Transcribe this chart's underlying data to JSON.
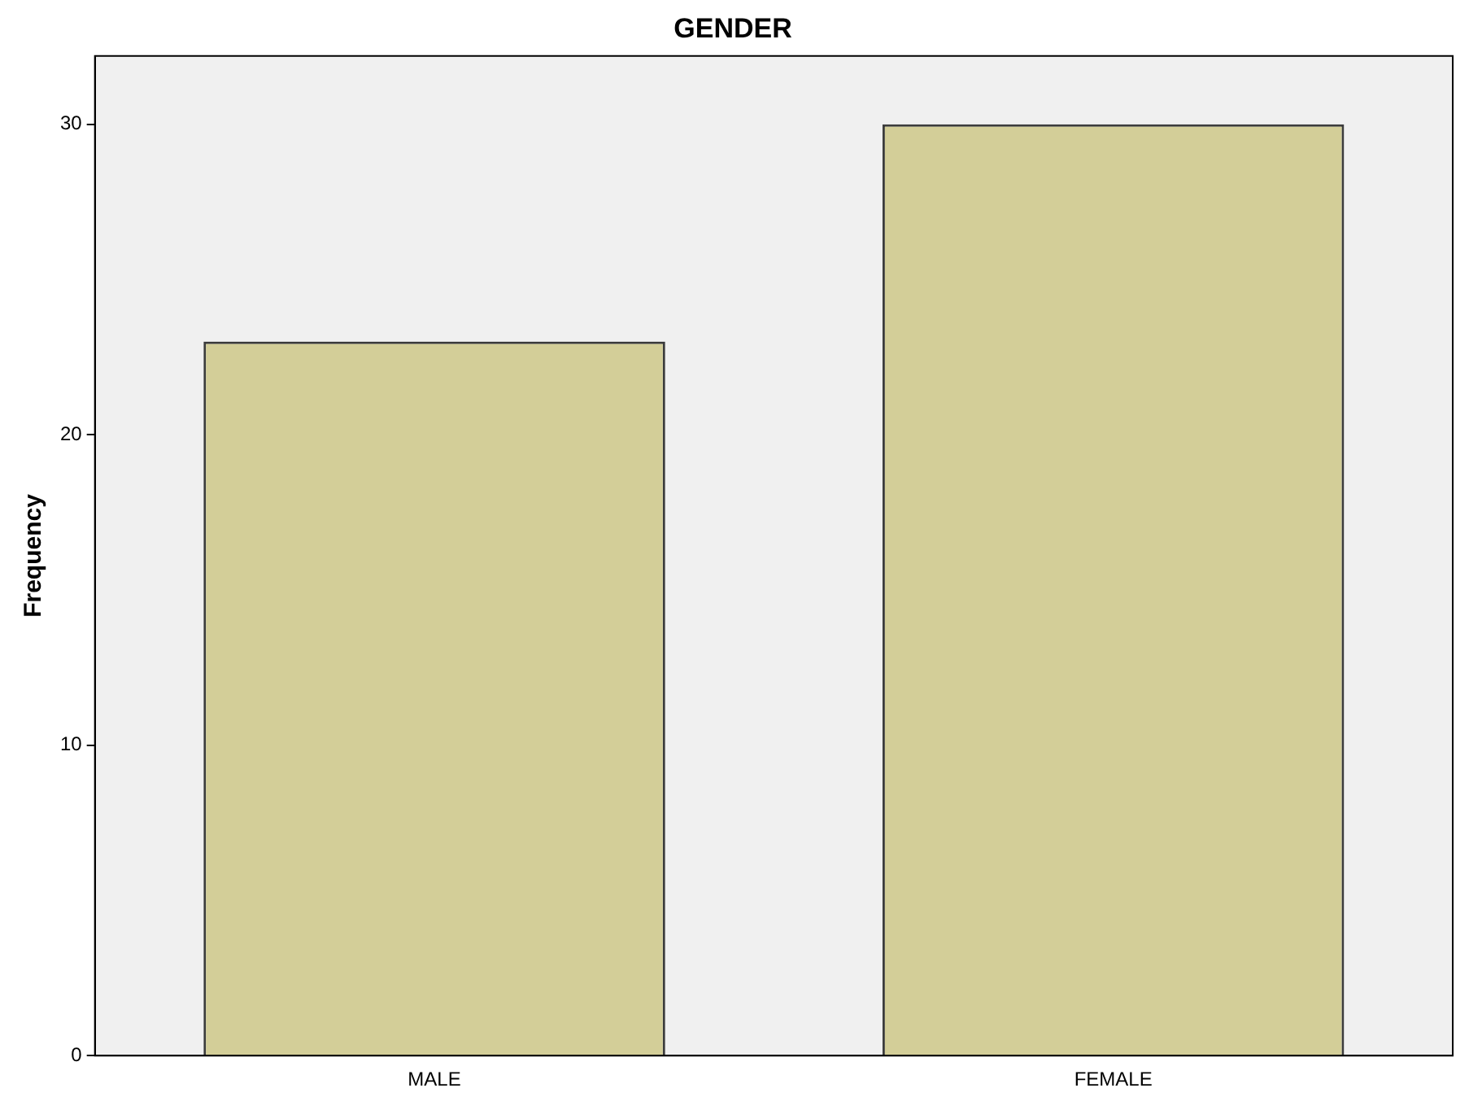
{
  "chart_data": {
    "type": "bar",
    "title": "GENDER",
    "ylabel": "Frequency",
    "categories": [
      "MALE",
      "FEMALE"
    ],
    "values": [
      23,
      30
    ],
    "color": "#d3ce98",
    "ylim": [
      0,
      32.2
    ],
    "yticks": [
      0,
      10,
      20,
      30
    ],
    "grid": false,
    "legend": false
  }
}
